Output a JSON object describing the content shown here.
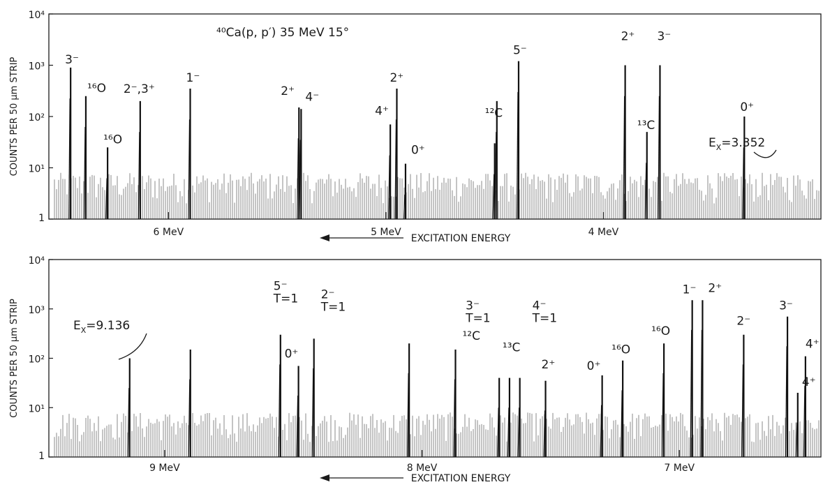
{
  "chart_data": [
    {
      "type": "line",
      "title": "⁴⁰Ca(p, p′)   35 MeV   15°",
      "ylabel": "COUNTS PER 50 µm STRIP",
      "xlabel": "EXCITATION ENERGY",
      "yscale": "log",
      "ylim": [
        1,
        10000
      ],
      "yticks": [
        "1",
        "10¹",
        "10²",
        "10³",
        "10⁴"
      ],
      "xlim_mev": [
        6.55,
        3.0
      ],
      "xticks": [
        {
          "label": "6 MeV",
          "mev": 6.0
        },
        {
          "label": "5 MeV",
          "mev": 5.0
        },
        {
          "label": "4 MeV",
          "mev": 4.0
        }
      ],
      "peaks": [
        {
          "x": 6.45,
          "y": 900,
          "label": "3⁻"
        },
        {
          "x": 6.38,
          "y": 250,
          "label": "¹⁶O"
        },
        {
          "x": 6.28,
          "y": 25,
          "label": "¹⁶O"
        },
        {
          "x": 6.13,
          "y": 200,
          "label": "2⁻,3⁺"
        },
        {
          "x": 5.9,
          "y": 350,
          "label": "1⁻"
        },
        {
          "x": 5.4,
          "y": 150,
          "label": "2⁺"
        },
        {
          "x": 5.39,
          "y": 140,
          "label": "4⁻"
        },
        {
          "x": 4.98,
          "y": 70,
          "label": "4⁺"
        },
        {
          "x": 4.95,
          "y": 350,
          "label": "2⁺"
        },
        {
          "x": 4.91,
          "y": 12,
          "label": "0⁺"
        },
        {
          "x": 4.5,
          "y": 30,
          "label": "¹²C"
        },
        {
          "x": 4.49,
          "y": 200,
          "label": ""
        },
        {
          "x": 4.39,
          "y": 1200,
          "label": "5⁻"
        },
        {
          "x": 3.9,
          "y": 1000,
          "label": "2⁺"
        },
        {
          "x": 3.8,
          "y": 50,
          "label": "¹³C"
        },
        {
          "x": 3.74,
          "y": 1000,
          "label": "3⁻"
        },
        {
          "x": 3.352,
          "y": 100,
          "label": "0⁺"
        }
      ],
      "annotations": [
        {
          "text": "E",
          "sub": "X",
          "value": "=3.352"
        }
      ]
    },
    {
      "type": "line",
      "title": "",
      "ylabel": "COUNTS PER 50 µm STRIP",
      "xlabel": "EXCITATION ENERGY",
      "yscale": "log",
      "ylim": [
        1,
        10000
      ],
      "yticks": [
        "1",
        "10¹",
        "10²",
        "10³",
        "10⁴"
      ],
      "xlim_mev": [
        9.45,
        6.45
      ],
      "xticks": [
        {
          "label": "9 MeV",
          "mev": 9.0
        },
        {
          "label": "8 MeV",
          "mev": 8.0
        },
        {
          "label": "7 MeV",
          "mev": 7.0
        }
      ],
      "peaks": [
        {
          "x": 9.136,
          "y": 100,
          "label": ""
        },
        {
          "x": 8.9,
          "y": 150,
          "label": ""
        },
        {
          "x": 8.55,
          "y": 300,
          "label": "5⁻ T=1"
        },
        {
          "x": 8.48,
          "y": 70,
          "label": "0⁺"
        },
        {
          "x": 8.42,
          "y": 250,
          "label": "2⁻ T=1"
        },
        {
          "x": 8.05,
          "y": 200,
          "label": ""
        },
        {
          "x": 7.87,
          "y": 150,
          "label": "¹²C"
        },
        {
          "x": 7.7,
          "y": 40,
          "label": "3⁻ T=1"
        },
        {
          "x": 7.66,
          "y": 40,
          "label": "¹³C"
        },
        {
          "x": 7.62,
          "y": 40,
          "label": "4⁻ T=1"
        },
        {
          "x": 7.52,
          "y": 35,
          "label": "2⁺"
        },
        {
          "x": 7.3,
          "y": 45,
          "label": "0⁺"
        },
        {
          "x": 7.22,
          "y": 90,
          "label": "¹⁶O"
        },
        {
          "x": 7.06,
          "y": 200,
          "label": "¹⁶O"
        },
        {
          "x": 6.95,
          "y": 1500,
          "label": "1⁻"
        },
        {
          "x": 6.91,
          "y": 1500,
          "label": "2⁺"
        },
        {
          "x": 6.75,
          "y": 300,
          "label": "2⁻"
        },
        {
          "x": 6.58,
          "y": 700,
          "label": "3⁻"
        },
        {
          "x": 6.54,
          "y": 20,
          "label": "4⁺"
        },
        {
          "x": 6.51,
          "y": 110,
          "label": "4⁺"
        }
      ],
      "annotations": [
        {
          "text": "E",
          "sub": "X",
          "value": "=9.136"
        }
      ]
    }
  ]
}
